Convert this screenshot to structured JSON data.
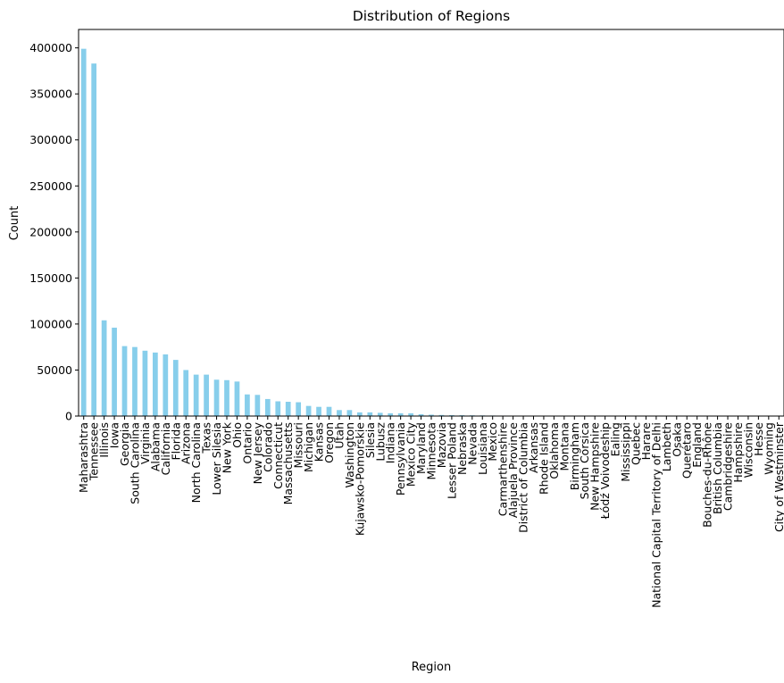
{
  "chart_data": {
    "type": "bar",
    "title": "Distribution of Regions",
    "xlabel": "Region",
    "ylabel": "Count",
    "ylim": [
      0,
      420000
    ],
    "yticks": [
      0,
      50000,
      100000,
      150000,
      200000,
      250000,
      300000,
      350000,
      400000
    ],
    "ytick_labels": [
      "0",
      "50000",
      "100000",
      "150000",
      "200000",
      "250000",
      "300000",
      "350000",
      "400000"
    ],
    "grid": false,
    "legend": "none",
    "bar_color": "#87ceeb",
    "categories": [
      "Maharashtra",
      "Tennessee",
      "Illinois",
      "Iowa",
      "Georgia",
      "South Carolina",
      "Virginia",
      "Alabama",
      "California",
      "Florida",
      "Arizona",
      "North Carolina",
      "Texas",
      "Lower Silesia",
      "New York",
      "Ohio",
      "Ontario",
      "New Jersey",
      "Colorado",
      "Connecticut",
      "Massachusetts",
      "Missouri",
      "Michigan",
      "Kansas",
      "Oregon",
      "Utah",
      "Washington",
      "Kujawsko-Pomorskie",
      "Silesia",
      "Lubusz",
      "Indiana",
      "Pennsylvania",
      "Mexico City",
      "Maryland",
      "Minnesota",
      "Mazovia",
      "Lesser Poland",
      "Nebraska",
      "Nevada",
      "Louisiana",
      "Mexico",
      "Carmarthenshire",
      "Alajuela Province",
      "District of Columbia",
      "Arkansas",
      "Rhode Island",
      "Oklahoma",
      "Montana",
      "Birmingham",
      "South Corsica",
      "New Hampshire",
      "Łódź Voivodeship",
      "Ealing",
      "Mississippi",
      "Quebec",
      "Harare",
      "National Capital Territory of Delhi",
      "Lambeth",
      "Osaka",
      "Querétaro",
      "England",
      "Bouches-du-Rhône",
      "British Columbia",
      "Cambridgeshire",
      "Hampshire",
      "Wisconsin",
      "Hesse",
      "Wyoming",
      "City of Westminster"
    ],
    "values": [
      399000,
      383000,
      104000,
      96000,
      76000,
      75000,
      71000,
      69000,
      67000,
      61000,
      50000,
      45000,
      45000,
      39500,
      39000,
      37500,
      23500,
      23000,
      18500,
      16000,
      15500,
      15000,
      11000,
      10000,
      10000,
      6500,
      6500,
      4000,
      4000,
      3500,
      3000,
      3000,
      3000,
      2000,
      1500,
      1200,
      1000,
      900,
      800,
      700,
      600,
      500,
      450,
      400,
      350,
      300,
      250,
      220,
      200,
      180,
      160,
      140,
      120,
      100,
      90,
      80,
      70,
      60,
      50,
      45,
      40,
      35,
      30,
      25,
      20,
      15,
      10,
      8,
      5
    ]
  }
}
